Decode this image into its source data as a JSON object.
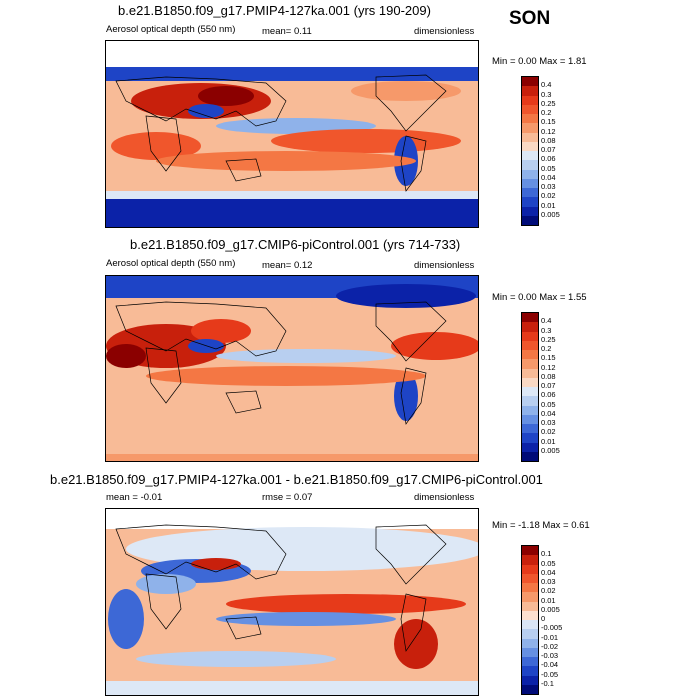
{
  "season": "SON",
  "panels": [
    {
      "title": "b.e21.B1850.f09_g17.PMIP4-127ka.001 (yrs 190-209)",
      "left_label": "Aerosol optical depth (550 nm)",
      "center_label": "mean=  0.11",
      "right_label": "dimensionless",
      "minmax": "Min =   0.00 Max =   1.81",
      "levels": [
        "0.4",
        "0.3",
        "0.25",
        "0.2",
        "0.15",
        "0.12",
        "0.08",
        "0.07",
        "0.06",
        "0.05",
        "0.04",
        "0.03",
        "0.02",
        "0.01",
        "0.005"
      ],
      "colors": [
        "#8b0000",
        "#c8200c",
        "#e63a1a",
        "#f0562c",
        "#f47744",
        "#f6996a",
        "#f8bb97",
        "#fad9c4",
        "#dde8f6",
        "#b8cff0",
        "#8fb2ea",
        "#6690e2",
        "#3d68d6",
        "#1e44c6",
        "#0b22a8",
        "#000b78"
      ]
    },
    {
      "title": "b.e21.B1850.f09_g17.CMIP6-piControl.001 (yrs 714-733)",
      "left_label": "Aerosol optical depth (550 nm)",
      "center_label": "mean=  0.12",
      "right_label": "dimensionless",
      "minmax": "Min =   0.00 Max =   1.55",
      "levels": [
        "0.4",
        "0.3",
        "0.25",
        "0.2",
        "0.15",
        "0.12",
        "0.08",
        "0.07",
        "0.06",
        "0.05",
        "0.04",
        "0.03",
        "0.02",
        "0.01",
        "0.005"
      ],
      "colors": [
        "#8b0000",
        "#c8200c",
        "#e63a1a",
        "#f0562c",
        "#f47744",
        "#f6996a",
        "#f8bb97",
        "#fad9c4",
        "#dde8f6",
        "#b8cff0",
        "#8fb2ea",
        "#6690e2",
        "#3d68d6",
        "#1e44c6",
        "#0b22a8",
        "#000b78"
      ]
    },
    {
      "title": "b.e21.B1850.f09_g17.PMIP4-127ka.001 - b.e21.B1850.f09_g17.CMIP6-piControl.001",
      "left_label": "mean =  -0.01",
      "center_label": "rmse =   0.07",
      "right_label": "dimensionless",
      "minmax": "Min =  -1.18 Max =   0.61",
      "levels": [
        "0.1",
        "0.05",
        "0.04",
        "0.03",
        "0.02",
        "0.01",
        "0.005",
        "0",
        "-0.005",
        "-0.01",
        "-0.02",
        "-0.03",
        "-0.04",
        "-0.05",
        "-0.1"
      ],
      "colors": [
        "#8b0000",
        "#c8200c",
        "#e63a1a",
        "#f0562c",
        "#f47744",
        "#f6996a",
        "#f8bb97",
        "#fde0cf",
        "#dbe6f5",
        "#b8cff0",
        "#8fb2ea",
        "#6690e2",
        "#3d68d6",
        "#1e44c6",
        "#0b22a8",
        "#000b78"
      ]
    }
  ]
}
